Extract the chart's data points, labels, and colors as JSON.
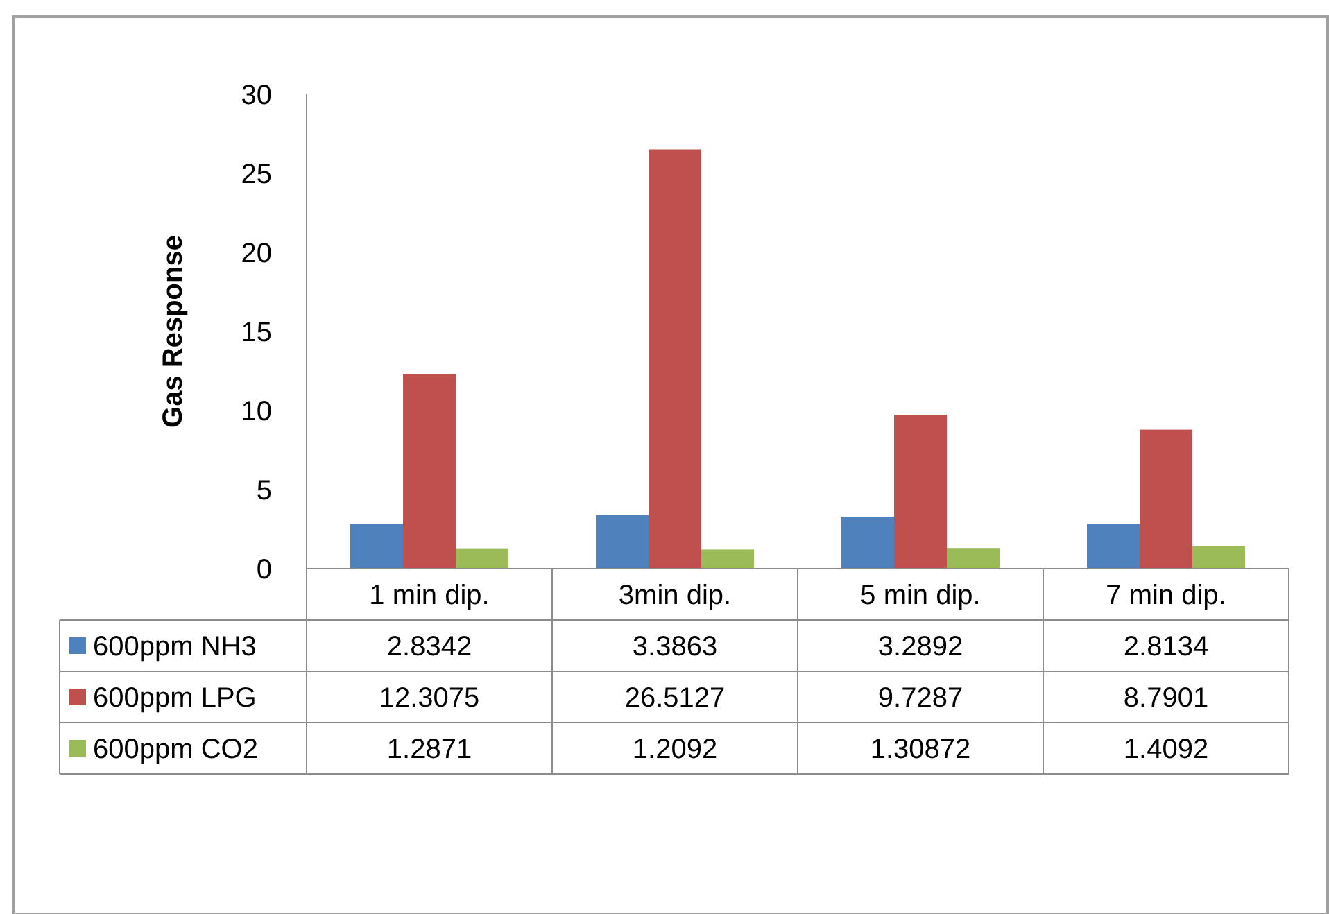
{
  "chart_data": {
    "type": "bar",
    "ylabel": "Gas Response",
    "categories": [
      "1 min dip.",
      "3min dip.",
      "5 min dip.",
      "7 min dip."
    ],
    "series": [
      {
        "name": "600ppm NH3",
        "color": "#4f81bd",
        "values": [
          2.8342,
          3.3863,
          3.2892,
          2.8134
        ]
      },
      {
        "name": "600ppm LPG",
        "color": "#c0504d",
        "values": [
          12.3075,
          26.5127,
          9.7287,
          8.7901
        ]
      },
      {
        "name": "600ppm CO2",
        "color": "#9bbb59",
        "values": [
          1.2871,
          1.2092,
          1.30872,
          1.4092
        ]
      }
    ],
    "ylim": [
      0,
      30
    ],
    "yticks": [
      0,
      5,
      10,
      15,
      20,
      25,
      30
    ],
    "grid": false,
    "legend": "bottom",
    "data_labels": true
  }
}
